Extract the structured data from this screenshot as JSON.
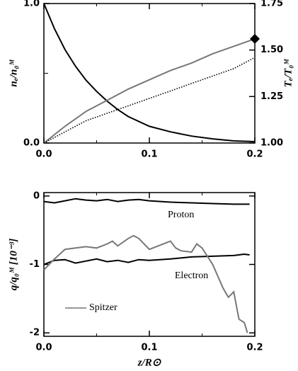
{
  "chart_data": [
    {
      "type": "line",
      "ylabel": "nₑ/n₀ᴹ",
      "y2label": "Tₑ/T₀ᴹ",
      "xlim": [
        0,
        0.2
      ],
      "xticks": [
        {
          "value": 0,
          "label": "0.0"
        },
        0.1,
        0.2
      ],
      "xticks_minor": [
        0.05,
        0.15
      ],
      "ylim": [
        0,
        1
      ],
      "yticks": [
        {
          "value": 0,
          "label": "0.0"
        },
        {
          "value": 1,
          "label": "1.0"
        }
      ],
      "yticks_minor": [
        0.5
      ],
      "y2lim": [
        1,
        1.75
      ],
      "y2ticks": [
        {
          "value": 1,
          "label": "1.00"
        },
        1.25,
        {
          "value": 1.5,
          "label": "1.50"
        },
        1.75
      ],
      "series": [
        {
          "color": "#000000",
          "style": "solid",
          "x": [
            0,
            0.01,
            0.02,
            0.03,
            0.04,
            0.05,
            0.06,
            0.07,
            0.08,
            0.1,
            0.12,
            0.14,
            0.16,
            0.18,
            0.2
          ],
          "values": [
            1.0,
            0.82,
            0.67,
            0.55,
            0.45,
            0.37,
            0.3,
            0.24,
            0.19,
            0.12,
            0.08,
            0.05,
            0.03,
            0.015,
            0.01
          ]
        },
        {
          "color": "#777777",
          "style": "solid",
          "axis": "y2",
          "x": [
            0,
            0.02,
            0.04,
            0.06,
            0.08,
            0.1,
            0.12,
            0.14,
            0.16,
            0.18,
            0.2
          ],
          "values": [
            1.0,
            1.09,
            1.17,
            1.23,
            1.29,
            1.34,
            1.39,
            1.43,
            1.48,
            1.52,
            1.56
          ]
        },
        {
          "color": "#000000",
          "style": "dotted",
          "axis": "y2",
          "x": [
            0,
            0.02,
            0.04,
            0.06,
            0.08,
            0.1,
            0.12,
            0.14,
            0.16,
            0.18,
            0.2
          ],
          "values": [
            1.0,
            1.06,
            1.12,
            1.16,
            1.2,
            1.24,
            1.28,
            1.32,
            1.36,
            1.4,
            1.46
          ]
        }
      ],
      "points": [
        {
          "x": 0.2,
          "y": 1.56,
          "axis": "y2",
          "marker": "diamond",
          "color": "#000000"
        }
      ]
    },
    {
      "type": "line",
      "ylabel": "q/q₀ᴹ  [10⁻³]",
      "xlabel": "z/R⊙",
      "xlim": [
        0,
        0.2
      ],
      "xticks": [
        {
          "value": 0,
          "label": "0.0"
        },
        0.1,
        0.2
      ],
      "xticks_minor": [
        0.05,
        0.15
      ],
      "ylim": [
        -2.05,
        0.05
      ],
      "yticks": [
        0,
        -1,
        -2
      ],
      "series": [
        {
          "name": "Proton",
          "color": "#000000",
          "style": "solid",
          "x": [
            0,
            0.01,
            0.02,
            0.03,
            0.04,
            0.05,
            0.06,
            0.07,
            0.08,
            0.09,
            0.1,
            0.12,
            0.14,
            0.16,
            0.18,
            0.195
          ],
          "values": [
            -0.08,
            -0.1,
            -0.07,
            -0.04,
            -0.06,
            -0.07,
            -0.05,
            -0.08,
            -0.06,
            -0.05,
            -0.07,
            -0.09,
            -0.1,
            -0.11,
            -0.12,
            -0.12
          ]
        },
        {
          "name": "Electron",
          "color": "#000000",
          "style": "solid",
          "x": [
            0,
            0.01,
            0.02,
            0.03,
            0.04,
            0.05,
            0.06,
            0.07,
            0.08,
            0.09,
            0.1,
            0.12,
            0.14,
            0.16,
            0.18,
            0.19,
            0.195
          ],
          "values": [
            -1.0,
            -0.94,
            -0.93,
            -0.98,
            -0.95,
            -0.92,
            -0.96,
            -0.94,
            -0.97,
            -0.93,
            -0.94,
            -0.92,
            -0.89,
            -0.88,
            -0.87,
            -0.85,
            -0.86
          ]
        },
        {
          "name": "Spitzer",
          "color": "#777777",
          "style": "solid",
          "x": [
            0,
            0.01,
            0.02,
            0.03,
            0.04,
            0.05,
            0.06,
            0.065,
            0.07,
            0.08,
            0.085,
            0.09,
            0.1,
            0.11,
            0.12,
            0.125,
            0.13,
            0.14,
            0.145,
            0.15,
            0.16,
            0.17,
            0.175,
            0.18,
            0.185,
            0.19,
            0.193
          ],
          "values": [
            -1.08,
            -0.92,
            -0.78,
            -0.76,
            -0.74,
            -0.76,
            -0.7,
            -0.66,
            -0.73,
            -0.62,
            -0.58,
            -0.62,
            -0.78,
            -0.72,
            -0.66,
            -0.76,
            -0.8,
            -0.82,
            -0.7,
            -0.76,
            -1.0,
            -1.35,
            -1.48,
            -1.4,
            -1.8,
            -1.85,
            -2.0
          ]
        }
      ]
    }
  ]
}
